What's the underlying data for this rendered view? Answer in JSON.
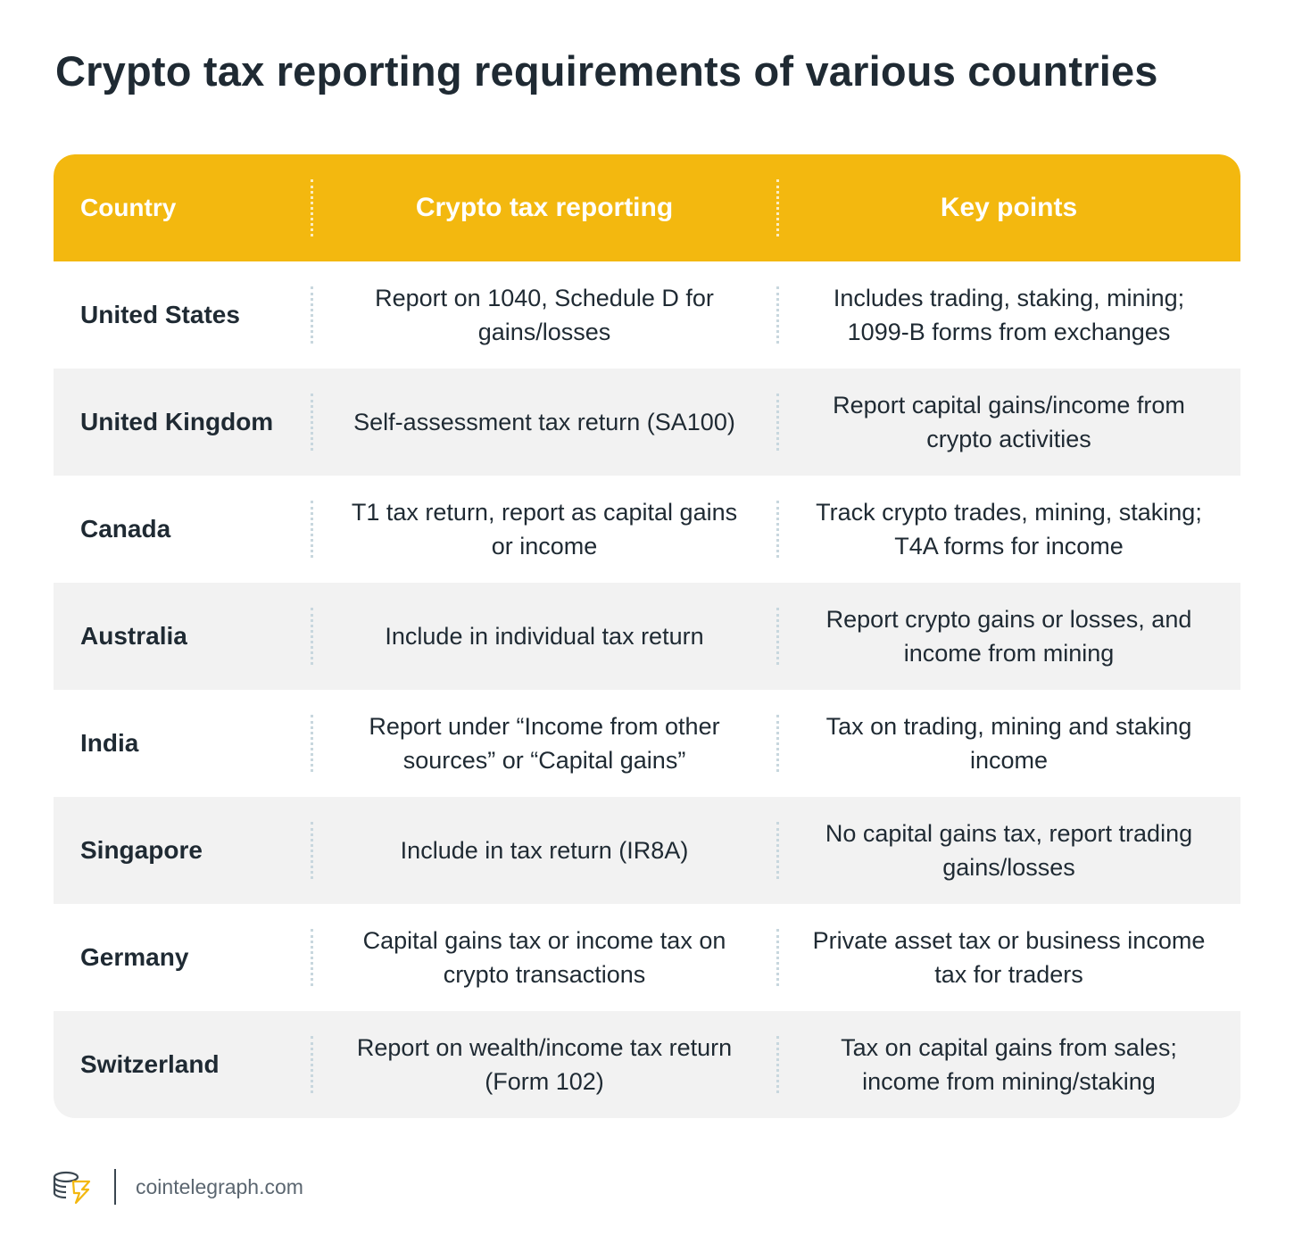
{
  "header": {
    "title": "Crypto tax reporting requirements of various countries"
  },
  "table": {
    "columns": [
      "Country",
      "Crypto tax reporting",
      "Key points"
    ],
    "rows": [
      [
        "United States",
        "Report on 1040, Schedule D for gains/losses",
        "Includes trading, staking, mining; 1099-B forms from exchanges"
      ],
      [
        "United Kingdom",
        "Self-assessment tax return (SA100)",
        "Report capital gains/income from crypto activities"
      ],
      [
        "Canada",
        "T1 tax return, report as capital gains or income",
        "Track crypto trades, mining, staking; T4A forms for income"
      ],
      [
        "Australia",
        "Include in individual tax return",
        "Report crypto gains or losses, and income from mining"
      ],
      [
        "India",
        "Report under “Income from other sources” or “Capital gains”",
        "Tax on trading, mining and staking income"
      ],
      [
        "Singapore",
        "Include in tax return (IR8A)",
        "No capital gains tax, report trading gains/losses"
      ],
      [
        "Germany",
        "Capital gains tax or income tax on crypto transactions",
        "Private asset tax or business income tax for traders"
      ],
      [
        "Switzerland",
        "Report on wealth/income tax return (Form 102)",
        "Tax on capital gains from sales; income from mining/staking"
      ]
    ]
  },
  "footer": {
    "source": "cointelegraph.com"
  }
}
